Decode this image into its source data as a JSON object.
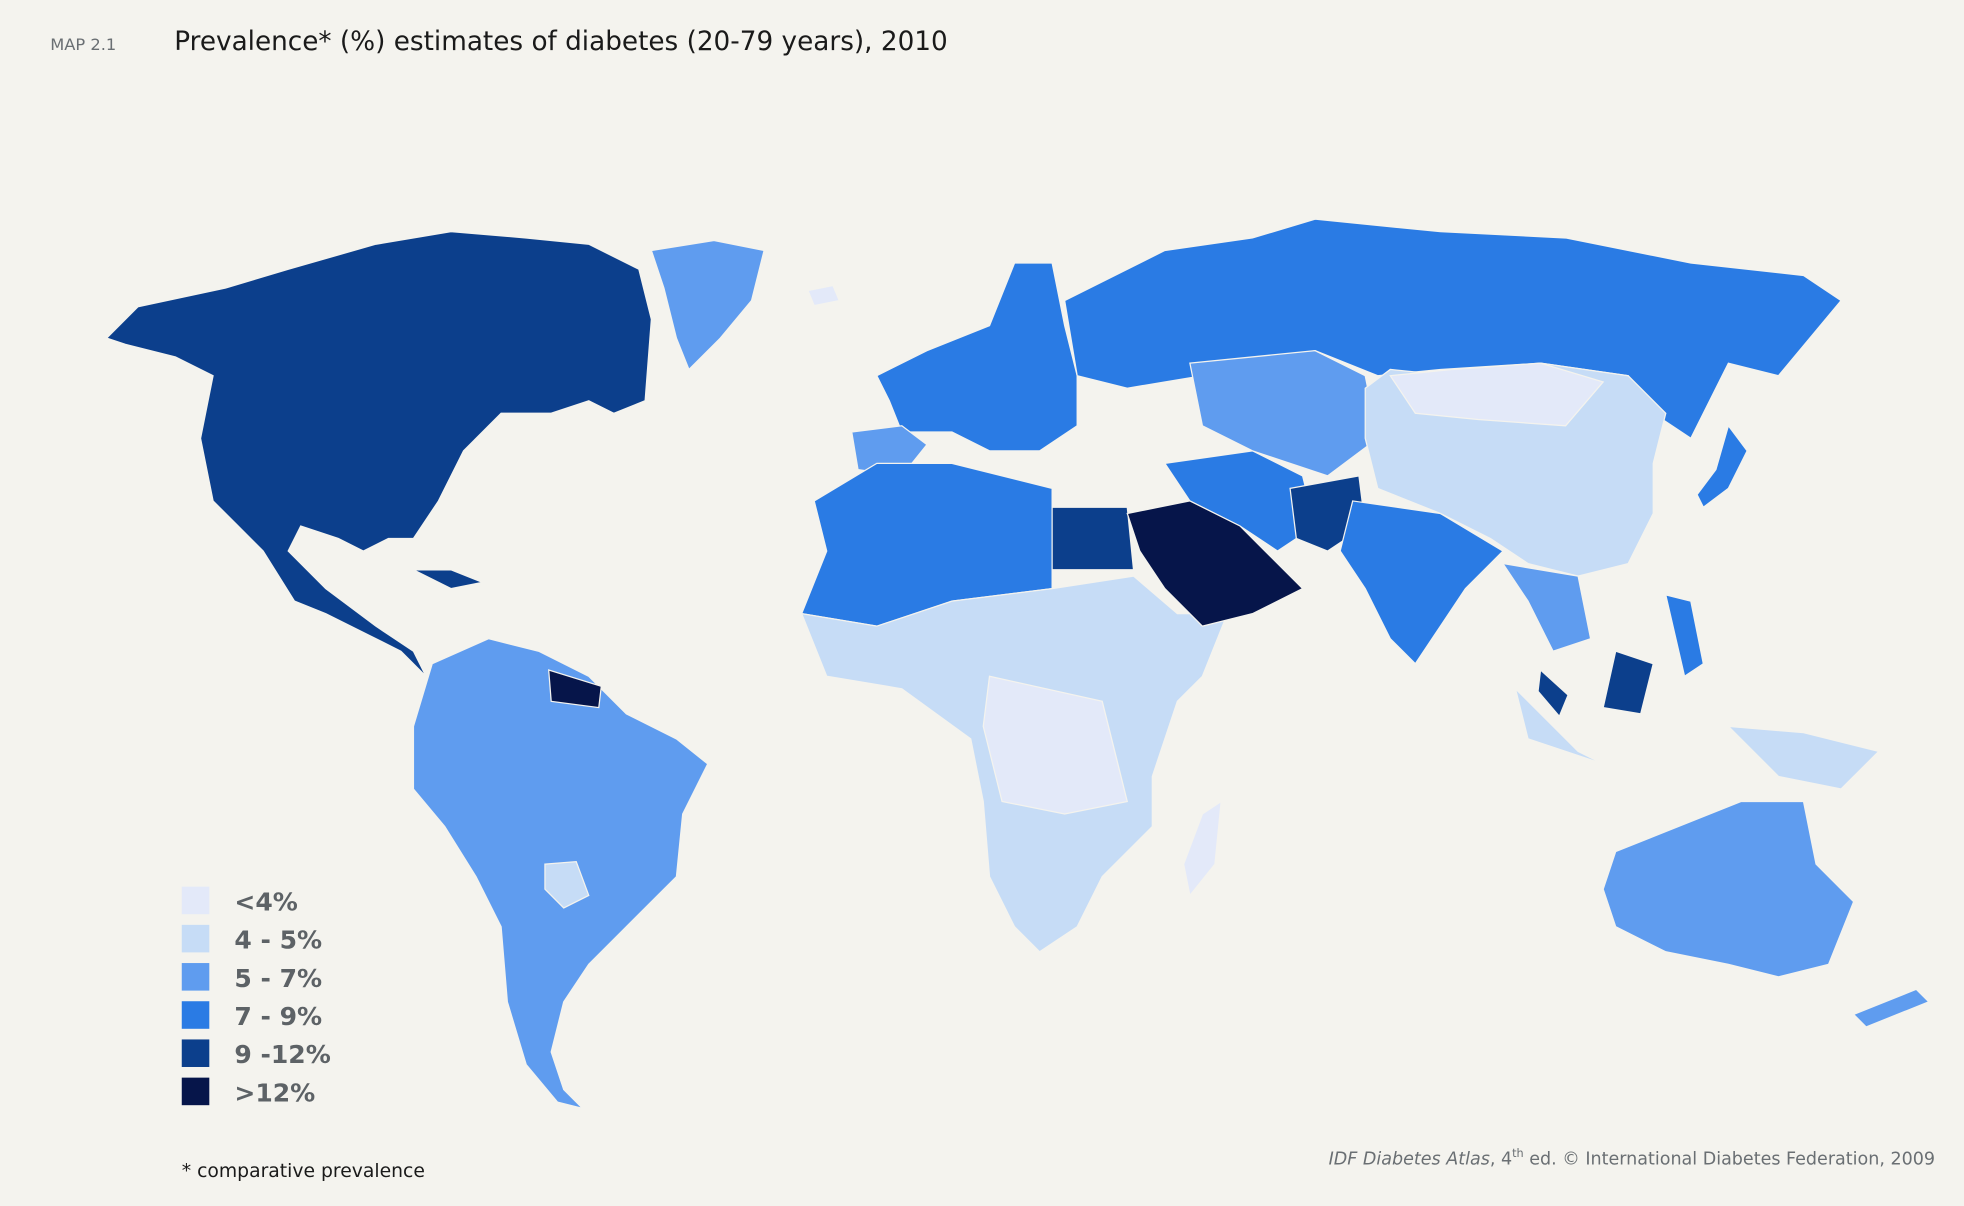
{
  "header": {
    "label": "MAP 2.1",
    "title": "Prevalence* (%) estimates of diabetes (20-79 years), 2010"
  },
  "legend": [
    {
      "label": "<4%",
      "color": "#e3e9f9"
    },
    {
      "label": "4 - 5%",
      "color": "#c6dcf6"
    },
    {
      "label": "5 - 7%",
      "color": "#5f9cef"
    },
    {
      "label": "7 - 9%",
      "color": "#2a7be4"
    },
    {
      "label": "9 -12%",
      "color": "#0c3f8c"
    },
    {
      "label": ">12%",
      "color": "#06154a"
    }
  ],
  "footnote": "* comparative prevalence",
  "source": {
    "publication": "IDF Diabetes Atlas",
    "edition": ", 4",
    "edition_suffix": "th",
    "rest": " ed. © International Diabetes Federation, 2009"
  }
}
